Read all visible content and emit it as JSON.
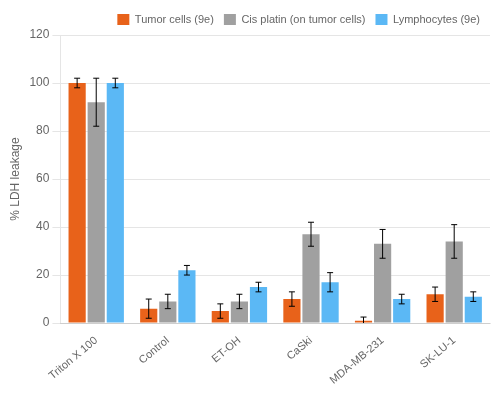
{
  "chart_data": {
    "type": "bar",
    "ylabel": "% LDH leakage",
    "categories": [
      "Triton X 100",
      "Control",
      "ET-OH",
      "CaSki",
      "MDA-MB-231",
      "SK-LU-1"
    ],
    "series": [
      {
        "name": "Tumor cells (9e)",
        "color": "#E8621A",
        "values": [
          100,
          6,
          5,
          10,
          1,
          12
        ],
        "errors": [
          2,
          4,
          3,
          3,
          1.5,
          3
        ]
      },
      {
        "name": "Cis platin (on tumor cells)",
        "color": "#A0A0A0",
        "values": [
          92,
          9,
          9,
          37,
          33,
          34
        ],
        "errors": [
          10,
          3,
          3,
          5,
          6,
          7
        ]
      },
      {
        "name": "Lymphocytes (9e)",
        "color": "#5BB8F5",
        "values": [
          100,
          22,
          15,
          17,
          10,
          11
        ],
        "errors": [
          2,
          2,
          2,
          4,
          2,
          2
        ]
      }
    ],
    "ylim": [
      0,
      120
    ],
    "yticks": [
      0,
      20,
      40,
      60,
      80,
      100,
      120
    ],
    "grid": true,
    "legend": "upper right"
  }
}
